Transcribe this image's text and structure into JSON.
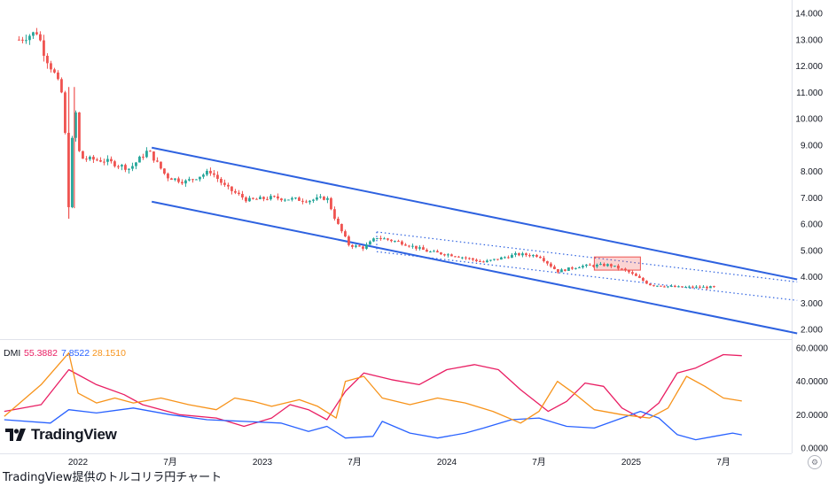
{
  "indicator": {
    "name": "DMI",
    "adx_value": "55.3882",
    "minus_di_value": "7.8522",
    "plus_di_value": "28.1510",
    "colors": {
      "adx": "#e91e63",
      "minus_di": "#2962ff",
      "plus_di": "#f7931a"
    }
  },
  "caption": "TradingView提供のトルコリラ円チャート",
  "logo_text": "TradingView",
  "settings_icon": "gear-icon",
  "chart_data": [
    {
      "type": "candlestick",
      "title": "",
      "y_ticks": [
        "14.000",
        "13.000",
        "12.000",
        "11.000",
        "10.000",
        "9.000",
        "8.000",
        "7.000",
        "6.000",
        "5.000",
        "4.000",
        "3.000",
        "2.000"
      ],
      "x_ticks": [
        "2022",
        "7月",
        "2023",
        "7月",
        "2024",
        "7月",
        "2025",
        "7月"
      ],
      "ylim": [
        1.7,
        14.4
      ],
      "colors": {
        "up": "#26a69a",
        "down": "#ef5350",
        "channel": "#2e62e0"
      },
      "price_path": [
        [
          2021.68,
          13.0
        ],
        [
          2021.78,
          13.3
        ],
        [
          2021.82,
          12.4
        ],
        [
          2021.88,
          11.6
        ],
        [
          2021.92,
          10.8
        ],
        [
          2021.95,
          6.6
        ],
        [
          2021.98,
          10.8
        ],
        [
          2022.01,
          8.5
        ],
        [
          2022.15,
          8.4
        ],
        [
          2022.28,
          8.1
        ],
        [
          2022.38,
          8.8
        ],
        [
          2022.48,
          7.8
        ],
        [
          2022.58,
          7.6
        ],
        [
          2022.72,
          8.0
        ],
        [
          2022.8,
          7.4
        ],
        [
          2022.92,
          6.9
        ],
        [
          2023.05,
          7.0
        ],
        [
          2023.25,
          6.9
        ],
        [
          2023.35,
          7.0
        ],
        [
          2023.4,
          6.1
        ],
        [
          2023.47,
          5.2
        ],
        [
          2023.55,
          5.1
        ],
        [
          2023.62,
          5.5
        ],
        [
          2023.75,
          5.3
        ],
        [
          2023.9,
          4.95
        ],
        [
          2024.05,
          4.8
        ],
        [
          2024.2,
          4.55
        ],
        [
          2024.38,
          4.85
        ],
        [
          2024.5,
          4.8
        ],
        [
          2024.6,
          4.2
        ],
        [
          2024.72,
          4.4
        ],
        [
          2024.88,
          4.45
        ],
        [
          2024.98,
          4.2
        ],
        [
          2025.1,
          3.7
        ],
        [
          2025.25,
          3.6
        ],
        [
          2025.45,
          3.6
        ]
      ],
      "channel": {
        "upper": [
          [
            2022.4,
            8.9
          ],
          [
            2025.9,
            3.9
          ]
        ],
        "lower": [
          [
            2022.4,
            6.85
          ],
          [
            2025.9,
            1.85
          ]
        ]
      },
      "inner_channel": {
        "upper": [
          [
            2023.62,
            5.7
          ],
          [
            2025.9,
            3.8
          ]
        ],
        "lower": [
          [
            2023.62,
            4.95
          ],
          [
            2025.9,
            3.1
          ]
        ]
      },
      "highlight_box": {
        "x": [
          2024.8,
          2025.05
        ],
        "y": [
          4.25,
          4.75
        ]
      }
    },
    {
      "type": "line",
      "title": "DMI",
      "y_ticks": [
        "60.0000",
        "40.0000",
        "20.0000",
        "0.0000"
      ],
      "ylim": [
        0,
        62
      ],
      "series": [
        {
          "name": "55.3882",
          "color": "#e91e63",
          "points": [
            [
              2021.6,
              22
            ],
            [
              2021.8,
              26
            ],
            [
              2021.95,
              47
            ],
            [
              2022.1,
              38
            ],
            [
              2022.25,
              32
            ],
            [
              2022.35,
              26
            ],
            [
              2022.55,
              20
            ],
            [
              2022.75,
              18
            ],
            [
              2022.9,
              13
            ],
            [
              2023.05,
              18
            ],
            [
              2023.15,
              26
            ],
            [
              2023.25,
              23
            ],
            [
              2023.35,
              17
            ],
            [
              2023.45,
              34
            ],
            [
              2023.55,
              45
            ],
            [
              2023.7,
              41
            ],
            [
              2023.85,
              38
            ],
            [
              2024.0,
              47
            ],
            [
              2024.15,
              50
            ],
            [
              2024.28,
              47
            ],
            [
              2024.4,
              35
            ],
            [
              2024.55,
              22
            ],
            [
              2024.65,
              28
            ],
            [
              2024.75,
              39
            ],
            [
              2024.85,
              37
            ],
            [
              2024.95,
              24
            ],
            [
              2025.05,
              18
            ],
            [
              2025.15,
              27
            ],
            [
              2025.25,
              45
            ],
            [
              2025.35,
              48
            ],
            [
              2025.5,
              56
            ],
            [
              2025.6,
              55.4
            ]
          ]
        },
        {
          "name": "7.8522",
          "color": "#2962ff",
          "points": [
            [
              2021.6,
              17
            ],
            [
              2021.85,
              15
            ],
            [
              2021.95,
              23
            ],
            [
              2022.1,
              21
            ],
            [
              2022.3,
              24
            ],
            [
              2022.5,
              20
            ],
            [
              2022.7,
              17
            ],
            [
              2022.9,
              16
            ],
            [
              2023.1,
              15
            ],
            [
              2023.25,
              10
            ],
            [
              2023.35,
              13
            ],
            [
              2023.45,
              6
            ],
            [
              2023.6,
              7
            ],
            [
              2023.65,
              16
            ],
            [
              2023.8,
              9
            ],
            [
              2023.95,
              6
            ],
            [
              2024.1,
              9
            ],
            [
              2024.2,
              12
            ],
            [
              2024.35,
              17
            ],
            [
              2024.5,
              18
            ],
            [
              2024.65,
              13
            ],
            [
              2024.8,
              12
            ],
            [
              2024.95,
              18
            ],
            [
              2025.05,
              22
            ],
            [
              2025.15,
              18
            ],
            [
              2025.25,
              8
            ],
            [
              2025.35,
              5
            ],
            [
              2025.45,
              7
            ],
            [
              2025.55,
              9
            ],
            [
              2025.6,
              7.9
            ]
          ]
        },
        {
          "name": "28.1510",
          "color": "#f7931a",
          "points": [
            [
              2021.6,
              19
            ],
            [
              2021.8,
              38
            ],
            [
              2021.95,
              57
            ],
            [
              2022.0,
              33
            ],
            [
              2022.1,
              27
            ],
            [
              2022.2,
              30
            ],
            [
              2022.3,
              27
            ],
            [
              2022.45,
              30
            ],
            [
              2022.6,
              26
            ],
            [
              2022.75,
              23
            ],
            [
              2022.85,
              30
            ],
            [
              2022.95,
              28
            ],
            [
              2023.05,
              25
            ],
            [
              2023.2,
              29
            ],
            [
              2023.3,
              25
            ],
            [
              2023.4,
              18
            ],
            [
              2023.45,
              40
            ],
            [
              2023.55,
              43
            ],
            [
              2023.65,
              30
            ],
            [
              2023.8,
              26
            ],
            [
              2023.95,
              30
            ],
            [
              2024.1,
              27
            ],
            [
              2024.25,
              22
            ],
            [
              2024.4,
              15
            ],
            [
              2024.5,
              22
            ],
            [
              2024.6,
              40
            ],
            [
              2024.7,
              32
            ],
            [
              2024.8,
              23
            ],
            [
              2024.95,
              20
            ],
            [
              2025.1,
              18
            ],
            [
              2025.2,
              24
            ],
            [
              2025.3,
              43
            ],
            [
              2025.4,
              37
            ],
            [
              2025.5,
              30
            ],
            [
              2025.6,
              28.2
            ]
          ]
        }
      ]
    }
  ]
}
